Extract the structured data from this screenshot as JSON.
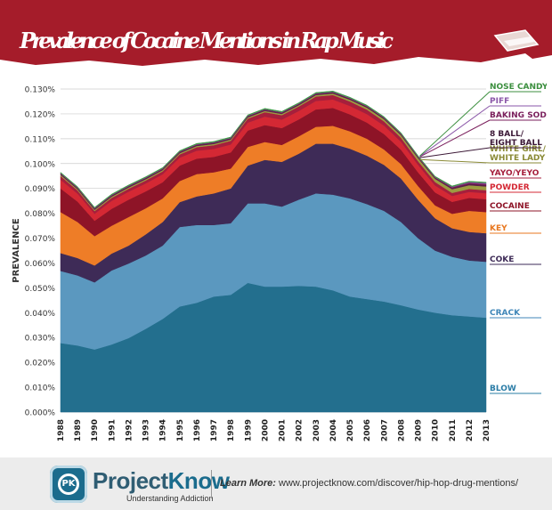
{
  "title": "Prevalence of Cocaine Mentions in Rap Music",
  "colors": {
    "banner": "#a51c2a",
    "panel": "#ffffff",
    "grid": "#cccccc"
  },
  "footer": {
    "brand_part1": "Project",
    "brand_part2": "Know",
    "tagline": "Understanding Addiction",
    "learn_label": "Learn More:",
    "url": "www.projectknow.com/discover/hip-hop-drug-mentions/"
  },
  "chart_data": {
    "type": "area",
    "stacked": true,
    "ylabel": "PREVALENCE",
    "xlabel": "",
    "ylim": [
      0,
      0.13
    ],
    "y_ticks": [
      0,
      0.01,
      0.02,
      0.03,
      0.04,
      0.05,
      0.06,
      0.07,
      0.08,
      0.09,
      0.1,
      0.11,
      0.12,
      0.13
    ],
    "y_tick_labels": [
      "0.000%",
      "0.010%",
      "0.020%",
      "0.030%",
      "0.040%",
      "0.050%",
      "0.060%",
      "0.070%",
      "0.080%",
      "0.090%",
      "0.100%",
      "0.110%",
      "0.120%",
      "0.130%"
    ],
    "grid": true,
    "legend": "right, labels at series",
    "x": [
      1988,
      1989,
      1990,
      1991,
      1992,
      1993,
      1994,
      1995,
      1996,
      1997,
      1998,
      1999,
      2000,
      2001,
      2002,
      2003,
      2004,
      2005,
      2006,
      2007,
      2008,
      2009,
      2010,
      2011,
      2012,
      2013
    ],
    "x_labels": [
      "1988",
      "1989",
      "1990",
      "1991",
      "1992",
      "1993",
      "1994",
      "1995",
      "1996",
      "1997",
      "1998",
      "1999",
      "2000",
      "2001",
      "2002",
      "2003",
      "2004",
      "2005",
      "2006",
      "2007",
      "2008",
      "2009",
      "2010",
      "2011",
      "2012",
      "2013"
    ],
    "series": [
      {
        "name": "BLOW",
        "color": "#236f8e",
        "label_color": "#2a7ca6",
        "values": [
          0.0278,
          0.0268,
          0.0252,
          0.0272,
          0.0298,
          0.0335,
          0.0375,
          0.0425,
          0.044,
          0.0465,
          0.0472,
          0.052,
          0.0505,
          0.0505,
          0.0508,
          0.0505,
          0.049,
          0.0465,
          0.0455,
          0.0445,
          0.043,
          0.0413,
          0.04,
          0.039,
          0.0385,
          0.038
        ]
      },
      {
        "name": "CRACK",
        "color": "#5b98bf",
        "label_color": "#3f86b8",
        "values": [
          0.029,
          0.0282,
          0.027,
          0.0298,
          0.03,
          0.0295,
          0.0295,
          0.032,
          0.0313,
          0.0288,
          0.0288,
          0.032,
          0.0335,
          0.0322,
          0.0347,
          0.0375,
          0.0385,
          0.0395,
          0.0382,
          0.0365,
          0.0335,
          0.0287,
          0.025,
          0.0235,
          0.0225,
          0.0225
        ]
      },
      {
        "name": "COKE",
        "color": "#3e2b57",
        "label_color": "#3e2b57",
        "values": [
          0.0072,
          0.007,
          0.0068,
          0.0068,
          0.0072,
          0.0085,
          0.0095,
          0.01,
          0.0115,
          0.0127,
          0.014,
          0.0152,
          0.0175,
          0.018,
          0.0185,
          0.02,
          0.0205,
          0.02,
          0.0195,
          0.0185,
          0.0175,
          0.0155,
          0.013,
          0.0115,
          0.0115,
          0.0115
        ]
      },
      {
        "name": "KEY",
        "color": "#ee7d27",
        "label_color": "#e8771f",
        "values": [
          0.0165,
          0.0145,
          0.0118,
          0.0112,
          0.0115,
          0.0105,
          0.0095,
          0.0085,
          0.009,
          0.0085,
          0.008,
          0.0075,
          0.0072,
          0.0068,
          0.007,
          0.0068,
          0.0072,
          0.007,
          0.0068,
          0.0062,
          0.0058,
          0.0055,
          0.0052,
          0.0058,
          0.0085,
          0.0085
        ]
      },
      {
        "name": "COCAINE",
        "color": "#8e1427",
        "label_color": "#8e1427",
        "values": [
          0.0095,
          0.0082,
          0.0062,
          0.0068,
          0.007,
          0.0068,
          0.0065,
          0.0062,
          0.0062,
          0.0062,
          0.0065,
          0.0066,
          0.0068,
          0.0068,
          0.0068,
          0.007,
          0.0072,
          0.0068,
          0.0065,
          0.0062,
          0.0058,
          0.0055,
          0.0052,
          0.0048,
          0.0052,
          0.0052
        ]
      },
      {
        "name": "POWDER",
        "color": "#d42834",
        "label_color": "#d42834",
        "values": [
          0.0035,
          0.0032,
          0.0028,
          0.0032,
          0.0032,
          0.0032,
          0.0032,
          0.0032,
          0.0032,
          0.0032,
          0.0032,
          0.0032,
          0.0034,
          0.0034,
          0.0034,
          0.0034,
          0.0034,
          0.0034,
          0.0034,
          0.0034,
          0.0032,
          0.003,
          0.0028,
          0.0024,
          0.0024,
          0.0024
        ]
      },
      {
        "name": "YAYO/YEYO",
        "color": "#a61f3c",
        "label_color": "#a61f3c",
        "values": [
          0.0015,
          0.0013,
          0.0011,
          0.0012,
          0.0012,
          0.0012,
          0.0012,
          0.0013,
          0.0014,
          0.0015,
          0.0015,
          0.0016,
          0.0018,
          0.0018,
          0.0018,
          0.0018,
          0.0018,
          0.0018,
          0.0018,
          0.0017,
          0.0016,
          0.0015,
          0.0014,
          0.0012,
          0.0012,
          0.0012
        ]
      },
      {
        "name": "WHITE GIRL/\nWHITE LADY",
        "color": "#9c9b41",
        "label_color": "#8a8a36",
        "values": [
          0.0005,
          0.0005,
          0.0005,
          0.0005,
          0.0005,
          0.0005,
          0.0005,
          0.0005,
          0.0005,
          0.0005,
          0.0005,
          0.0005,
          0.0005,
          0.0005,
          0.0005,
          0.0006,
          0.0006,
          0.0007,
          0.0008,
          0.0009,
          0.001,
          0.0012,
          0.0013,
          0.0015,
          0.0015,
          0.0015
        ]
      },
      {
        "name": "8 BALL/\nEIGHT BALL",
        "color": "#5a1e4a",
        "label_color": "#3b1836",
        "values": [
          0.0004,
          0.0004,
          0.0004,
          0.0004,
          0.0004,
          0.0004,
          0.0004,
          0.0004,
          0.0004,
          0.0004,
          0.0004,
          0.0004,
          0.0004,
          0.0004,
          0.0004,
          0.0004,
          0.0004,
          0.0004,
          0.0004,
          0.0004,
          0.0004,
          0.0004,
          0.0004,
          0.0005,
          0.0006,
          0.0006
        ]
      },
      {
        "name": "BAKING SODA",
        "color": "#7a1f5c",
        "label_color": "#7a1f5c",
        "values": [
          0.0002,
          0.0002,
          0.0002,
          0.0002,
          0.0002,
          0.0002,
          0.0002,
          0.0002,
          0.0002,
          0.0002,
          0.0002,
          0.0002,
          0.0002,
          0.0002,
          0.0002,
          0.0002,
          0.0002,
          0.0002,
          0.0002,
          0.0002,
          0.0002,
          0.0002,
          0.0002,
          0.0003,
          0.0004,
          0.0004
        ]
      },
      {
        "name": "PIFF",
        "color": "#8a56a8",
        "label_color": "#8a56a8",
        "values": [
          0.0001,
          0.0001,
          0.0001,
          0.0001,
          0.0001,
          0.0001,
          0.0001,
          0.0001,
          0.0001,
          0.0001,
          0.0001,
          0.0001,
          0.0001,
          0.0001,
          0.0001,
          0.0001,
          0.0001,
          0.0001,
          0.0001,
          0.0001,
          0.0001,
          0.0001,
          0.0001,
          0.0002,
          0.0003,
          0.0004
        ]
      },
      {
        "name": "NOSE CANDY",
        "color": "#3c9a45",
        "label_color": "#3c8f3f",
        "values": [
          0.0003,
          0.0003,
          0.0003,
          0.0003,
          0.0003,
          0.0003,
          0.0003,
          0.0003,
          0.0003,
          0.0003,
          0.0003,
          0.0003,
          0.0003,
          0.0003,
          0.0003,
          0.0003,
          0.0003,
          0.0003,
          0.0003,
          0.0003,
          0.0003,
          0.0003,
          0.0003,
          0.0003,
          0.0003,
          0.0003
        ]
      }
    ]
  }
}
